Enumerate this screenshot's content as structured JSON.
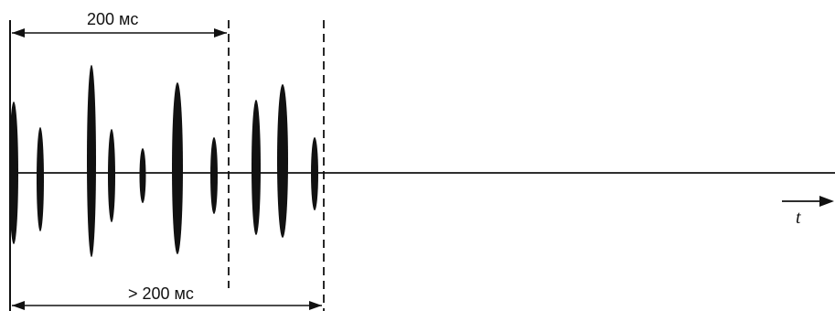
{
  "diagram": {
    "top_interval_label": "200 мс",
    "bottom_interval_label": "> 200 мс",
    "time_axis_label": "t",
    "ink_color": "#111111"
  }
}
